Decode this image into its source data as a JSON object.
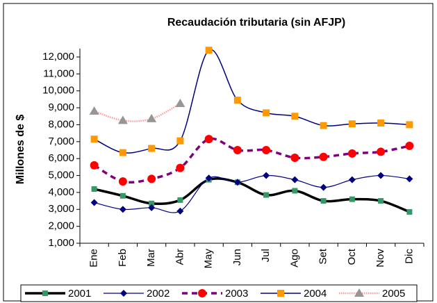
{
  "chart_data": {
    "type": "line",
    "title": "Recaudación tributaria (sin AFJP)",
    "y_label": "Millones de $",
    "categories": [
      "Ene",
      "Feb",
      "Mar",
      "Abr",
      "May",
      "Jun",
      "Jul",
      "Ago",
      "Set",
      "Oct",
      "Nov",
      "Dic"
    ],
    "ylim": [
      1000,
      12500
    ],
    "yticks": [
      {
        "value": 1000,
        "label": "1,000"
      },
      {
        "value": 2000,
        "label": "2,000"
      },
      {
        "value": 3000,
        "label": "3,000"
      },
      {
        "value": 4000,
        "label": "4,000"
      },
      {
        "value": 5000,
        "label": "5,000"
      },
      {
        "value": 6000,
        "label": "6,000"
      },
      {
        "value": 7000,
        "label": "7,000"
      },
      {
        "value": 8000,
        "label": "8,000"
      },
      {
        "value": 9000,
        "label": "9,000"
      },
      {
        "value": 10000,
        "label": "10,000"
      },
      {
        "value": 11000,
        "label": "11,000"
      },
      {
        "value": 12000,
        "label": "12,000"
      }
    ],
    "legend": "bottom",
    "series": [
      {
        "name": "2001",
        "color": "#000000",
        "marker_color": "#339966",
        "values": [
          4200,
          3800,
          3350,
          3550,
          4750,
          4600,
          3850,
          4100,
          3500,
          3600,
          3500,
          2850
        ]
      },
      {
        "name": "2002",
        "color": "#000080",
        "marker_color": "#000080",
        "values": [
          3400,
          3000,
          3100,
          2900,
          4850,
          4600,
          5000,
          4750,
          4300,
          4750,
          5000,
          4800
        ]
      },
      {
        "name": "2003",
        "color": "#800080",
        "marker_color": "#ff0000",
        "values": [
          5600,
          4650,
          4800,
          5450,
          7150,
          6500,
          6500,
          6050,
          6100,
          6300,
          6400,
          6750
        ]
      },
      {
        "name": "2004",
        "color": "#000080",
        "marker_color": "#ff9900",
        "values": [
          7150,
          6350,
          6600,
          7050,
          12400,
          9450,
          8700,
          8500,
          7950,
          8050,
          8100,
          8000
        ]
      },
      {
        "name": "2005",
        "color": "#ff9999",
        "marker_color": "#969696",
        "values": [
          8800,
          8250,
          8350,
          9250,
          null,
          null,
          null,
          null,
          null,
          null,
          null,
          null
        ]
      }
    ]
  }
}
